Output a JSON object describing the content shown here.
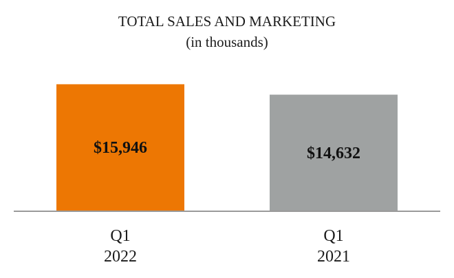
{
  "chart_data": {
    "type": "bar",
    "title": "TOTAL SALES AND MARKETING",
    "subtitle": "(in thousands)",
    "categories": [
      [
        "Q1",
        "2022"
      ],
      [
        "Q1",
        "2021"
      ]
    ],
    "values": [
      15946,
      14632
    ],
    "value_labels": [
      "$15,946",
      "$14,632"
    ],
    "colors": [
      "#ED7703",
      "#9FA2A2"
    ],
    "ylim": [
      0,
      17200
    ],
    "grid": false,
    "legend": "none",
    "baseline_color": "#9A9A9A"
  }
}
